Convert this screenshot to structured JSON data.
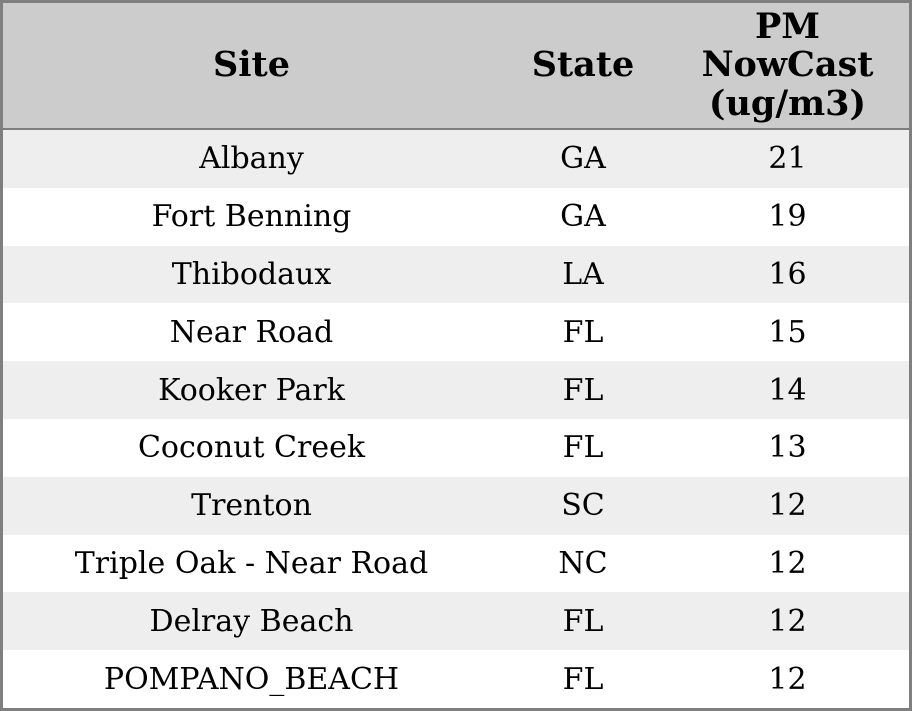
{
  "table": {
    "columns": [
      {
        "label": "Site"
      },
      {
        "label": "State"
      },
      {
        "label": "PM NowCast (ug/m3)"
      }
    ],
    "rows": [
      {
        "site": "Albany",
        "state": "GA",
        "value": "21"
      },
      {
        "site": "Fort Benning",
        "state": "GA",
        "value": "19"
      },
      {
        "site": "Thibodaux",
        "state": "LA",
        "value": "16"
      },
      {
        "site": "Near Road",
        "state": "FL",
        "value": "15"
      },
      {
        "site": "Kooker Park",
        "state": "FL",
        "value": "14"
      },
      {
        "site": "Coconut Creek",
        "state": "FL",
        "value": "13"
      },
      {
        "site": "Trenton",
        "state": "SC",
        "value": "12"
      },
      {
        "site": "Triple Oak - Near Road",
        "state": "NC",
        "value": "12"
      },
      {
        "site": "Delray Beach",
        "state": "FL",
        "value": "12"
      },
      {
        "site": "POMPANO_BEACH",
        "state": "FL",
        "value": "12"
      }
    ]
  },
  "colors": {
    "header_background": "#cccccc",
    "row_alt_background": "#eeeeee",
    "row_background": "#ffffff",
    "border": "#7f7f7f",
    "text": "#000000"
  },
  "chart_data": {
    "type": "table",
    "title": "",
    "columns": [
      "Site",
      "State",
      "PM NowCast (ug/m3)"
    ],
    "rows": [
      [
        "Albany",
        "GA",
        21
      ],
      [
        "Fort Benning",
        "GA",
        19
      ],
      [
        "Thibodaux",
        "LA",
        16
      ],
      [
        "Near Road",
        "FL",
        15
      ],
      [
        "Kooker Park",
        "FL",
        14
      ],
      [
        "Coconut Creek",
        "FL",
        13
      ],
      [
        "Trenton",
        "SC",
        12
      ],
      [
        "Triple Oak - Near Road",
        "NC",
        12
      ],
      [
        "Delray Beach",
        "FL",
        12
      ],
      [
        "POMPANO_BEACH",
        "FL",
        12
      ]
    ]
  }
}
